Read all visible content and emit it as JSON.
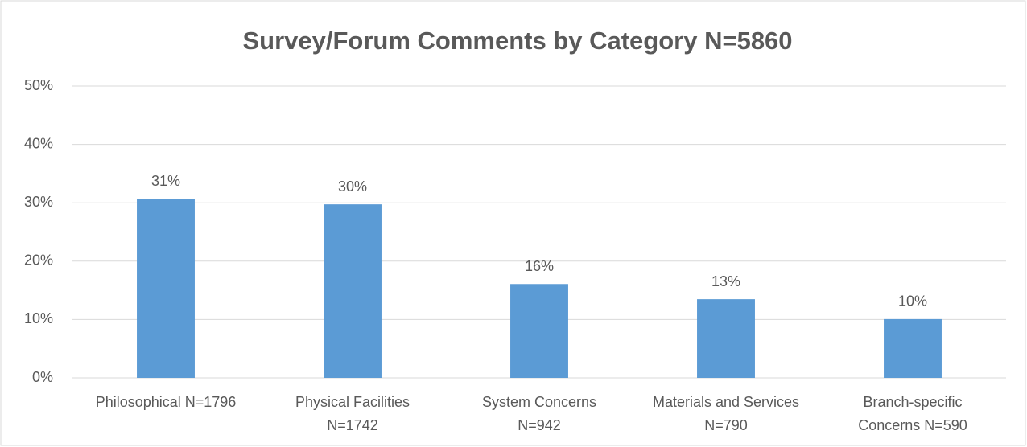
{
  "chart_data": {
    "type": "bar",
    "title": "Survey/Forum Comments by Category N=5860",
    "categories": [
      [
        "Philosophical N=1796"
      ],
      [
        "Physical Facilities",
        "N=1742"
      ],
      [
        "System Concerns",
        "N=942"
      ],
      [
        "Materials and Services",
        "N=790"
      ],
      [
        "Branch-specific",
        "Concerns N=590"
      ]
    ],
    "values": [
      30.65,
      29.73,
      16.08,
      13.48,
      10.07
    ],
    "value_labels": [
      "31%",
      "30%",
      "16%",
      "13%",
      "10%"
    ],
    "color": "#5b9bd5",
    "ylim": [
      0,
      50
    ],
    "yticks": [
      {
        "value": 0,
        "label": "0%"
      },
      {
        "value": 10,
        "label": "10%"
      },
      {
        "value": 20,
        "label": "20%"
      },
      {
        "value": 30,
        "label": "30%"
      },
      {
        "value": 40,
        "label": "40%"
      },
      {
        "value": 50,
        "label": "50%"
      }
    ],
    "grid": true
  }
}
